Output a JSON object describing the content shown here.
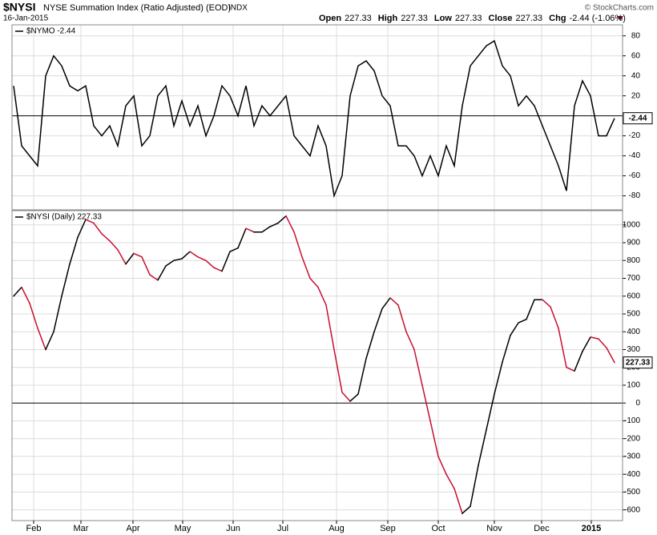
{
  "header": {
    "symbol": "$NYSI",
    "name": "NYSE Summation Index (Ratio Adjusted) (EOD)",
    "exchange": "INDX",
    "date": "16-Jan-2015",
    "quote": [
      {
        "label": "Open",
        "value": "227.33"
      },
      {
        "label": "High",
        "value": "227.33"
      },
      {
        "label": "Low",
        "value": "227.33"
      },
      {
        "label": "Close",
        "value": "227.33"
      },
      {
        "label": "Chg",
        "value": "-2.44 (-1.06%)"
      }
    ],
    "credit": "© StockCharts.com"
  },
  "chart_data": [
    {
      "type": "line",
      "legend": "$NYMO -2.44",
      "last_label": "-2.44",
      "color": "#000000",
      "xlim": [
        -0.2,
        76
      ],
      "ylim": [
        -94,
        91
      ],
      "yticks": [
        -80,
        -60,
        -40,
        -20,
        0,
        20,
        40,
        60,
        80
      ],
      "grid": true,
      "series": [
        {
          "name": "$NYMO",
          "values": [
            30,
            -30,
            -40,
            -50,
            40,
            60,
            50,
            30,
            25,
            30,
            -10,
            -20,
            -10,
            -30,
            10,
            20,
            -30,
            -20,
            20,
            30,
            -10,
            15,
            -10,
            10,
            -20,
            0,
            30,
            20,
            0,
            30,
            -10,
            10,
            0,
            10,
            20,
            -20,
            -30,
            -40,
            -10,
            -30,
            -80,
            -60,
            20,
            50,
            55,
            45,
            20,
            10,
            -30,
            -30,
            -40,
            -60,
            -40,
            -60,
            -30,
            -50,
            10,
            50,
            60,
            70,
            75,
            50,
            40,
            10,
            20,
            10,
            -10,
            -30,
            -50,
            -75,
            10,
            35,
            20,
            -20,
            -20,
            -2.44
          ]
        }
      ]
    },
    {
      "type": "updown",
      "legend": "$NYSI (Daily) 227.33",
      "last_label": "227.33",
      "up_color": "#000000",
      "down_color": "#c8102e",
      "xlim": [
        -0.2,
        76
      ],
      "ylim": [
        -660,
        1080
      ],
      "yticks": [
        -600,
        -500,
        -400,
        -300,
        -200,
        -100,
        0,
        100,
        200,
        300,
        400,
        500,
        600,
        700,
        800,
        900,
        1000
      ],
      "grid": true,
      "xticks": [
        {
          "value": 2.5,
          "label": "Feb"
        },
        {
          "value": 8.4,
          "label": "Mar"
        },
        {
          "value": 14.9,
          "label": "Apr"
        },
        {
          "value": 21.1,
          "label": "May"
        },
        {
          "value": 27.4,
          "label": "Jun"
        },
        {
          "value": 33.6,
          "label": "Jul"
        },
        {
          "value": 40.3,
          "label": "Aug"
        },
        {
          "value": 46.7,
          "label": "Sep"
        },
        {
          "value": 53,
          "label": "Oct"
        },
        {
          "value": 60,
          "label": "Nov"
        },
        {
          "value": 65.9,
          "label": "Dec"
        },
        {
          "value": 72.1,
          "label": "2015"
        }
      ],
      "series": [
        {
          "name": "$NYSI",
          "values": [
            600,
            650,
            560,
            420,
            300,
            400,
            600,
            780,
            930,
            1030,
            1010,
            950,
            910,
            860,
            780,
            840,
            820,
            720,
            690,
            770,
            800,
            810,
            850,
            820,
            800,
            760,
            740,
            850,
            870,
            980,
            960,
            960,
            990,
            1010,
            1050,
            960,
            820,
            700,
            650,
            550,
            300,
            60,
            10,
            50,
            250,
            400,
            530,
            590,
            550,
            400,
            300,
            100,
            -100,
            -300,
            -400,
            -480,
            -620,
            -580,
            -350,
            -150,
            50,
            230,
            380,
            450,
            470,
            580,
            580,
            540,
            420,
            200,
            180,
            290,
            370,
            360,
            310,
            227.33
          ]
        }
      ]
    }
  ]
}
